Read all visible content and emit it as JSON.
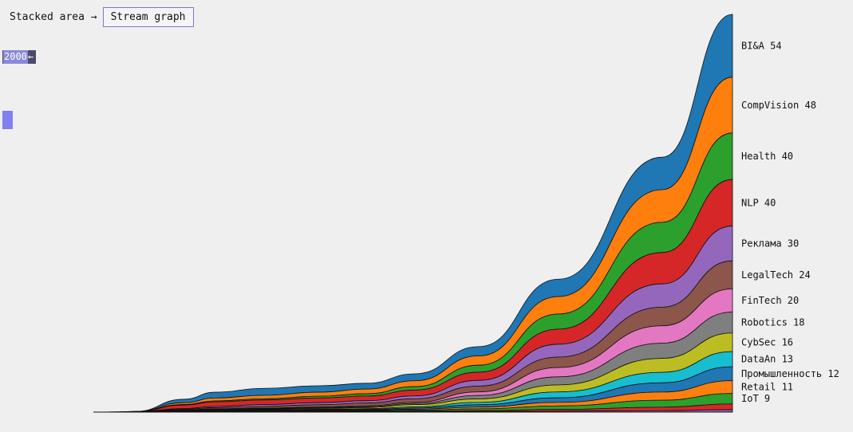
{
  "toolbar": {
    "mode_label": "Stacked area →",
    "mode_button": "Stream graph"
  },
  "year_selector": {
    "value": "2000",
    "arrow": "←"
  },
  "chart_data": {
    "type": "area",
    "stacking": "stream",
    "series": [
      {
        "name": "BI&A",
        "label": "BI&A 54",
        "end_value": 54,
        "color": "#1f77b4",
        "values": [
          0,
          0.02,
          0.1,
          3,
          5,
          6,
          5.5,
          5,
          6,
          8,
          15,
          28,
          54
        ]
      },
      {
        "name": "CompVision",
        "label": "CompVision 48",
        "end_value": 48,
        "color": "#ff7f0e",
        "values": [
          0,
          0.02,
          0.1,
          1.5,
          2.5,
          3,
          3.5,
          4,
          5,
          8,
          15,
          28,
          48
        ]
      },
      {
        "name": "Health",
        "label": "Health 40",
        "end_value": 40,
        "color": "#2ca02c",
        "values": [
          0,
          0.02,
          0.05,
          0.5,
          0.8,
          1,
          1.5,
          2,
          3,
          6,
          13,
          26,
          40
        ]
      },
      {
        "name": "NLP",
        "label": "NLP 40",
        "end_value": 40,
        "color": "#d62728",
        "values": [
          0,
          0.02,
          0.1,
          3,
          4,
          4,
          4,
          4,
          5,
          7,
          13,
          27,
          40
        ]
      },
      {
        "name": "Реклама",
        "label": "Реклама 30",
        "end_value": 30,
        "color": "#9467bd",
        "values": [
          0,
          0.01,
          0.05,
          0.6,
          1,
          1.5,
          1.8,
          2,
          2.5,
          5,
          11,
          20,
          30
        ]
      },
      {
        "name": "LegalTech",
        "label": "LegalTech 24",
        "end_value": 24,
        "color": "#8c564b",
        "values": [
          0,
          0.01,
          0.05,
          0.6,
          1,
          1.5,
          2,
          2.5,
          3,
          5,
          9,
          16,
          24
        ]
      },
      {
        "name": "FinTech",
        "label": "FinTech 20",
        "end_value": 20,
        "color": "#e377c2",
        "values": [
          0,
          0.01,
          0.02,
          0.2,
          0.3,
          0.5,
          0.6,
          0.7,
          1,
          3,
          8,
          15,
          20
        ]
      },
      {
        "name": "Robotics",
        "label": "Robotics 18",
        "end_value": 18,
        "color": "#7f7f7f",
        "values": [
          0,
          0.01,
          0.02,
          0.2,
          0.4,
          0.5,
          0.6,
          0.7,
          1,
          3,
          7,
          13,
          18
        ]
      },
      {
        "name": "CybSec",
        "label": "CybSec 16",
        "end_value": 16,
        "color": "#bcbd22",
        "values": [
          0,
          0.01,
          0.02,
          0.2,
          0.4,
          0.5,
          0.7,
          1,
          2,
          3,
          6,
          12,
          16
        ]
      },
      {
        "name": "DataAn",
        "label": "DataAn 13",
        "end_value": 13,
        "color": "#17becf",
        "values": [
          0,
          0.01,
          0.02,
          0.2,
          0.3,
          0.4,
          0.5,
          0.6,
          1,
          2,
          5,
          9,
          13
        ]
      },
      {
        "name": "Промышленность",
        "label": "Промышленность 12",
        "end_value": 12,
        "color": "#1f77b4",
        "values": [
          0,
          0.01,
          0.02,
          0.3,
          0.4,
          0.5,
          0.5,
          0.6,
          1,
          2,
          4,
          8,
          12
        ]
      },
      {
        "name": "Retail",
        "label": "Retail 11",
        "end_value": 11,
        "color": "#ff7f0e",
        "values": [
          0,
          0.01,
          0.02,
          0.3,
          0.4,
          0.4,
          0.5,
          0.5,
          0.8,
          1.5,
          3,
          7,
          11
        ]
      },
      {
        "name": "IoT",
        "label": "IoT 9",
        "end_value": 9,
        "color": "#2ca02c",
        "values": [
          0,
          0.01,
          0.02,
          0.2,
          0.3,
          0.3,
          0.4,
          0.5,
          0.8,
          1.5,
          3,
          6,
          9
        ]
      },
      {
        "name": "",
        "label": "",
        "end_value": 5,
        "color": "#d62728",
        "values": [
          0,
          0.01,
          0.02,
          0.1,
          0.2,
          0.2,
          0.3,
          0.4,
          0.5,
          0.8,
          1.5,
          3,
          5
        ]
      },
      {
        "name": "",
        "label": "",
        "end_value": 2,
        "color": "#9467bd",
        "values": [
          0,
          0.01,
          0.02,
          0.1,
          0.1,
          0.1,
          0.2,
          0.3,
          0.3,
          0.5,
          0.8,
          1.2,
          2
        ]
      }
    ]
  }
}
